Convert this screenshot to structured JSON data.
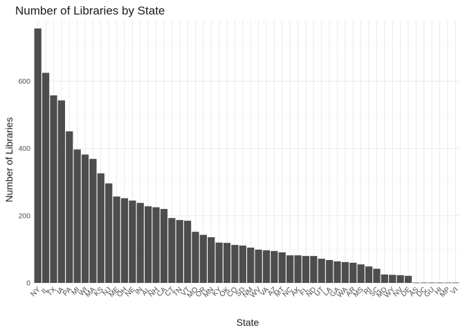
{
  "chart_data": {
    "type": "bar",
    "title": "Number of Libraries by State",
    "xlabel": "State",
    "ylabel": "Number of Libraries",
    "ylim": [
      0,
      780
    ],
    "yticks": [
      0,
      200,
      400,
      600
    ],
    "grid": true,
    "bar_color": "#4d4d4d",
    "categories": [
      "NY",
      "IL",
      "TX",
      "IA",
      "PA",
      "MI",
      "WI",
      "MA",
      "KS",
      "NJ",
      "ME",
      "OH",
      "NE",
      "IN",
      "AL",
      "NH",
      "CA",
      "CT",
      "TN",
      "VT",
      "MO",
      "OR",
      "MN",
      "KY",
      "OK",
      "CO",
      "SD",
      "NM",
      "WV",
      "VA",
      "AZ",
      "MT",
      "NC",
      "AK",
      "FL",
      "ND",
      "UT",
      "LA",
      "GA",
      "WA",
      "AR",
      "MS",
      "RI",
      "SC",
      "MD",
      "WY",
      "NV",
      "DE",
      "AS",
      "DC",
      "GU",
      "HI",
      "MP",
      "VI"
    ],
    "values": [
      757,
      625,
      558,
      543,
      451,
      397,
      382,
      369,
      326,
      296,
      257,
      252,
      245,
      238,
      228,
      225,
      220,
      193,
      187,
      185,
      152,
      143,
      136,
      120,
      119,
      113,
      111,
      105,
      99,
      97,
      95,
      91,
      82,
      82,
      80,
      80,
      72,
      68,
      64,
      62,
      60,
      55,
      49,
      42,
      25,
      24,
      23,
      21,
      1,
      1,
      1,
      1,
      1,
      1
    ]
  }
}
